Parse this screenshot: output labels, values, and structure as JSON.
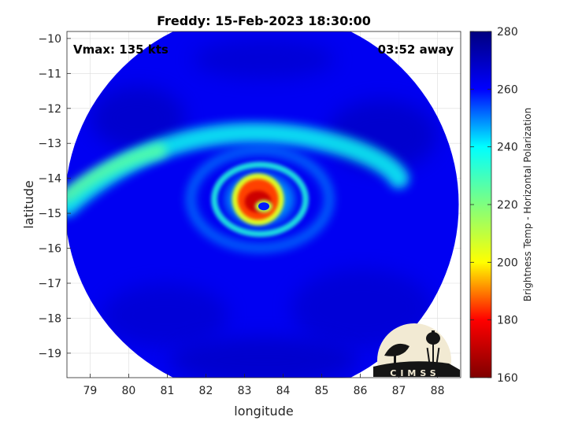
{
  "chart_data": {
    "type": "heatmap",
    "title": "Freddy: 15-Feb-2023 18:30:00",
    "xlabel": "longitude",
    "ylabel": "latitude",
    "annotations": {
      "vmax": "Vmax: 135 kts",
      "time_away": "03:52 away"
    },
    "xlim": [
      78.4,
      88.6
    ],
    "ylim": [
      -19.7,
      -9.8
    ],
    "x_ticks": [
      79,
      80,
      81,
      82,
      83,
      84,
      85,
      86,
      87,
      88
    ],
    "x_tick_labels": [
      "79",
      "80",
      "81",
      "82",
      "83",
      "84",
      "85",
      "86",
      "87",
      "88"
    ],
    "y_ticks": [
      -10,
      -11,
      -12,
      -13,
      -14,
      -15,
      -16,
      -17,
      -18,
      -19
    ],
    "y_tick_labels": [
      "−10",
      "−11",
      "−12",
      "−13",
      "−14",
      "−15",
      "−16",
      "−17",
      "−18",
      "−19"
    ],
    "grid": true,
    "swath": {
      "center_lon": 83.45,
      "center_lat": -14.7,
      "lon_halfwidth": 5.1,
      "lat_top": -9.8,
      "lat_bottom": -19.7,
      "background_value": 262
    },
    "features": [
      {
        "kind": "eye",
        "lon": 83.5,
        "lat": -14.8,
        "value": 160
      },
      {
        "kind": "eyewall",
        "lon": 83.35,
        "lat": -14.6,
        "value": 185
      },
      {
        "kind": "inner_rainband",
        "lon": 83.4,
        "lat": -14.6,
        "value": 235
      },
      {
        "kind": "outer_band",
        "lon": 79.0,
        "lat": -14.0,
        "value": 238
      }
    ],
    "colorbar": {
      "label": "Brightness Temp - Horizontal Polarization",
      "min": 160,
      "max": 280,
      "ticks": [
        160,
        180,
        200,
        220,
        240,
        260,
        280
      ],
      "tick_labels": [
        "160",
        "180",
        "200",
        "220",
        "240",
        "260",
        "280"
      ],
      "colormap": "jet",
      "colors": [
        "#7f0000",
        "#ff0000",
        "#ffff00",
        "#7fff7f",
        "#00ffff",
        "#0000ff",
        "#00007f"
      ]
    },
    "logo": {
      "text": "CIMSS"
    }
  }
}
